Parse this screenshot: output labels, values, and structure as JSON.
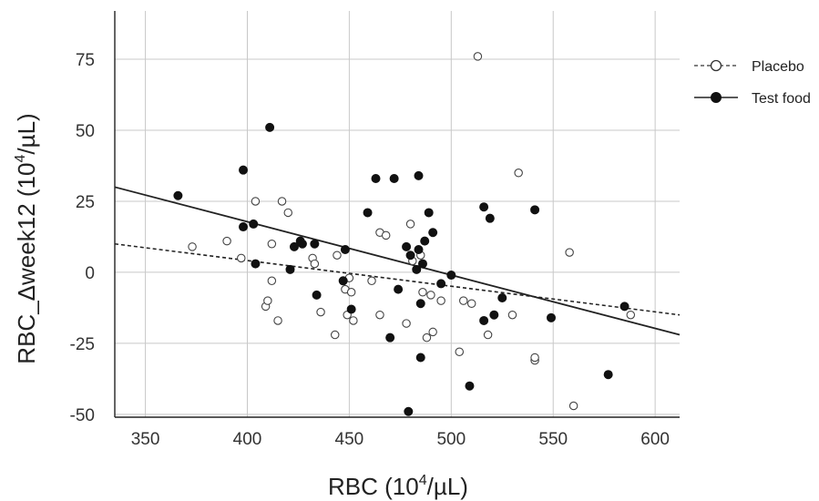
{
  "chart_data": {
    "type": "scatter",
    "xlabel": {
      "base": "RBC (10",
      "sup": "4",
      "rest": "/µL)"
    },
    "ylabel": {
      "base": "RBC_Δweek12 (10",
      "sup": "4",
      "rest": "/µL)"
    },
    "xlim": [
      335,
      612
    ],
    "ylim": [
      -51,
      92
    ],
    "x_ticks": [
      350,
      400,
      450,
      500,
      550,
      600
    ],
    "y_ticks": [
      75,
      50,
      25,
      0,
      -25,
      -50
    ],
    "grid": true,
    "legend_position": "right",
    "series": [
      {
        "name": "Placebo",
        "marker": "open-circle",
        "line_style": "dashed",
        "fit_line": {
          "x": [
            335,
            612
          ],
          "y": [
            10,
            -15
          ]
        },
        "points": [
          [
            373,
            9
          ],
          [
            390,
            11
          ],
          [
            397,
            5
          ],
          [
            404,
            25
          ],
          [
            412,
            10
          ],
          [
            417,
            25
          ],
          [
            420,
            21
          ],
          [
            409,
            -12
          ],
          [
            410,
            -10
          ],
          [
            412,
            -3
          ],
          [
            415,
            -17
          ],
          [
            432,
            5
          ],
          [
            433,
            3
          ],
          [
            436,
            -14
          ],
          [
            443,
            -22
          ],
          [
            444,
            6
          ],
          [
            448,
            -6
          ],
          [
            449,
            -15
          ],
          [
            450,
            -2
          ],
          [
            451,
            -7
          ],
          [
            452,
            -17
          ],
          [
            461,
            -3
          ],
          [
            465,
            14
          ],
          [
            468,
            13
          ],
          [
            465,
            -15
          ],
          [
            478,
            -18
          ],
          [
            480,
            17
          ],
          [
            481,
            4
          ],
          [
            485,
            6
          ],
          [
            486,
            -7
          ],
          [
            488,
            -23
          ],
          [
            490,
            -8
          ],
          [
            491,
            -21
          ],
          [
            495,
            -10
          ],
          [
            504,
            -28
          ],
          [
            506,
            -10
          ],
          [
            510,
            -11
          ],
          [
            513,
            76
          ],
          [
            518,
            -22
          ],
          [
            530,
            -15
          ],
          [
            533,
            35
          ],
          [
            541,
            -31
          ],
          [
            541,
            -30
          ],
          [
            558,
            7
          ],
          [
            560,
            -47
          ],
          [
            588,
            -15
          ]
        ]
      },
      {
        "name": "Test food",
        "marker": "filled-circle",
        "line_style": "solid",
        "fit_line": {
          "x": [
            335,
            612
          ],
          "y": [
            30,
            -22
          ]
        },
        "points": [
          [
            366,
            27
          ],
          [
            398,
            36
          ],
          [
            398,
            16
          ],
          [
            403,
            17
          ],
          [
            404,
            3
          ],
          [
            411,
            51
          ],
          [
            421,
            1
          ],
          [
            423,
            9
          ],
          [
            426,
            11
          ],
          [
            427,
            10
          ],
          [
            433,
            10
          ],
          [
            434,
            -8
          ],
          [
            447,
            -3
          ],
          [
            448,
            8
          ],
          [
            451,
            -13
          ],
          [
            459,
            21
          ],
          [
            463,
            33
          ],
          [
            470,
            -23
          ],
          [
            472,
            33
          ],
          [
            474,
            -6
          ],
          [
            478,
            9
          ],
          [
            480,
            6
          ],
          [
            483,
            1
          ],
          [
            484,
            34
          ],
          [
            484,
            8
          ],
          [
            485,
            -11
          ],
          [
            485,
            -30
          ],
          [
            486,
            3
          ],
          [
            487,
            11
          ],
          [
            489,
            21
          ],
          [
            491,
            14
          ],
          [
            479,
            -49
          ],
          [
            495,
            -4
          ],
          [
            500,
            -1
          ],
          [
            509,
            -40
          ],
          [
            516,
            23
          ],
          [
            516,
            -17
          ],
          [
            519,
            19
          ],
          [
            521,
            -15
          ],
          [
            525,
            -9
          ],
          [
            541,
            22
          ],
          [
            549,
            -16
          ],
          [
            577,
            -36
          ],
          [
            585,
            -12
          ]
        ]
      }
    ]
  }
}
